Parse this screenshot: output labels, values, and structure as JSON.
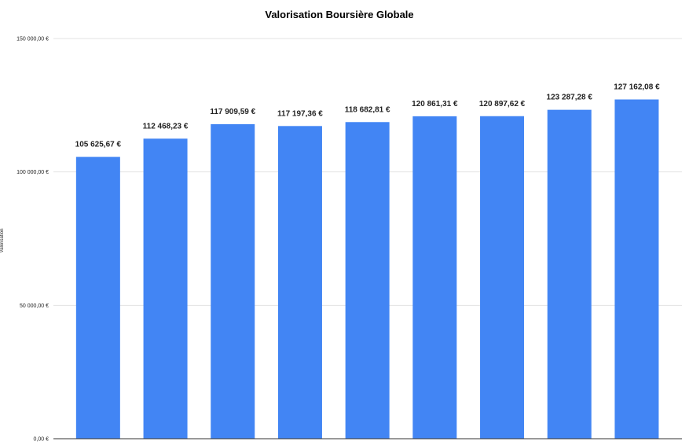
{
  "chart_data": {
    "type": "bar",
    "title": "Valorisation Boursière Globale",
    "xlabel": "",
    "ylabel": "Valorisation",
    "ylim": [
      0,
      150000
    ],
    "y_ticks": [
      0,
      50000,
      100000,
      150000
    ],
    "y_tick_labels": [
      "0,00 €",
      "50 000,00 €",
      "100 000,00 €",
      "150 000,00 €"
    ],
    "grid": true,
    "legend": "none",
    "bar_color": "#4285f4",
    "categories": [
      "",
      "",
      "",
      "",
      "",
      "",
      "",
      "",
      ""
    ],
    "values": [
      105625.67,
      112468.23,
      117909.59,
      117197.36,
      118682.81,
      120861.31,
      120897.62,
      123287.28,
      127162.08
    ],
    "value_labels": [
      "105 625,67 €",
      "112 468,23 €",
      "117 909,59 €",
      "117 197,36 €",
      "118 682,81 €",
      "120 861,31 €",
      "120 897,62 €",
      "123 287,28 €",
      "127 162,08 €"
    ]
  }
}
